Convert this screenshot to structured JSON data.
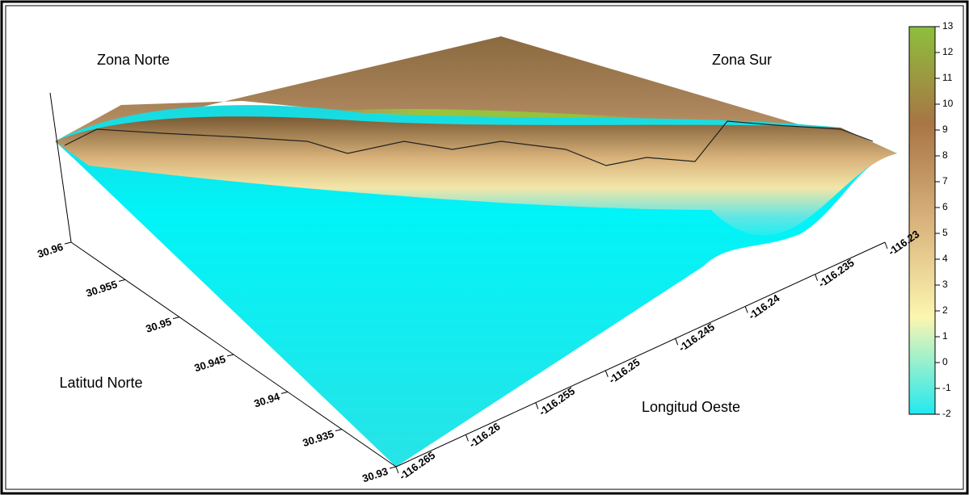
{
  "chart_data": {
    "type": "surface3d",
    "annotations": [
      "Zona Norte",
      "Zona Sur"
    ],
    "x_label": "Longitud Oeste",
    "y_label": "Latitud Norte",
    "xlim": [
      -116.265,
      -116.23
    ],
    "xticks": [
      -116.265,
      -116.26,
      -116.255,
      -116.25,
      -116.245,
      -116.24,
      -116.235,
      -116.23
    ],
    "ylim": [
      30.93,
      30.96
    ],
    "yticks": [
      30.93,
      30.935,
      30.94,
      30.945,
      30.95,
      30.955,
      30.96
    ],
    "clim": [
      -2,
      13
    ],
    "cticks": [
      -2,
      -1,
      0,
      1,
      2,
      3,
      4,
      5,
      6,
      7,
      8,
      9,
      10,
      11,
      12,
      13
    ],
    "colorscale": [
      "#22e8f0",
      "#fcf6b0",
      "#d9b27c",
      "#a87545",
      "#8dbf3c"
    ]
  }
}
